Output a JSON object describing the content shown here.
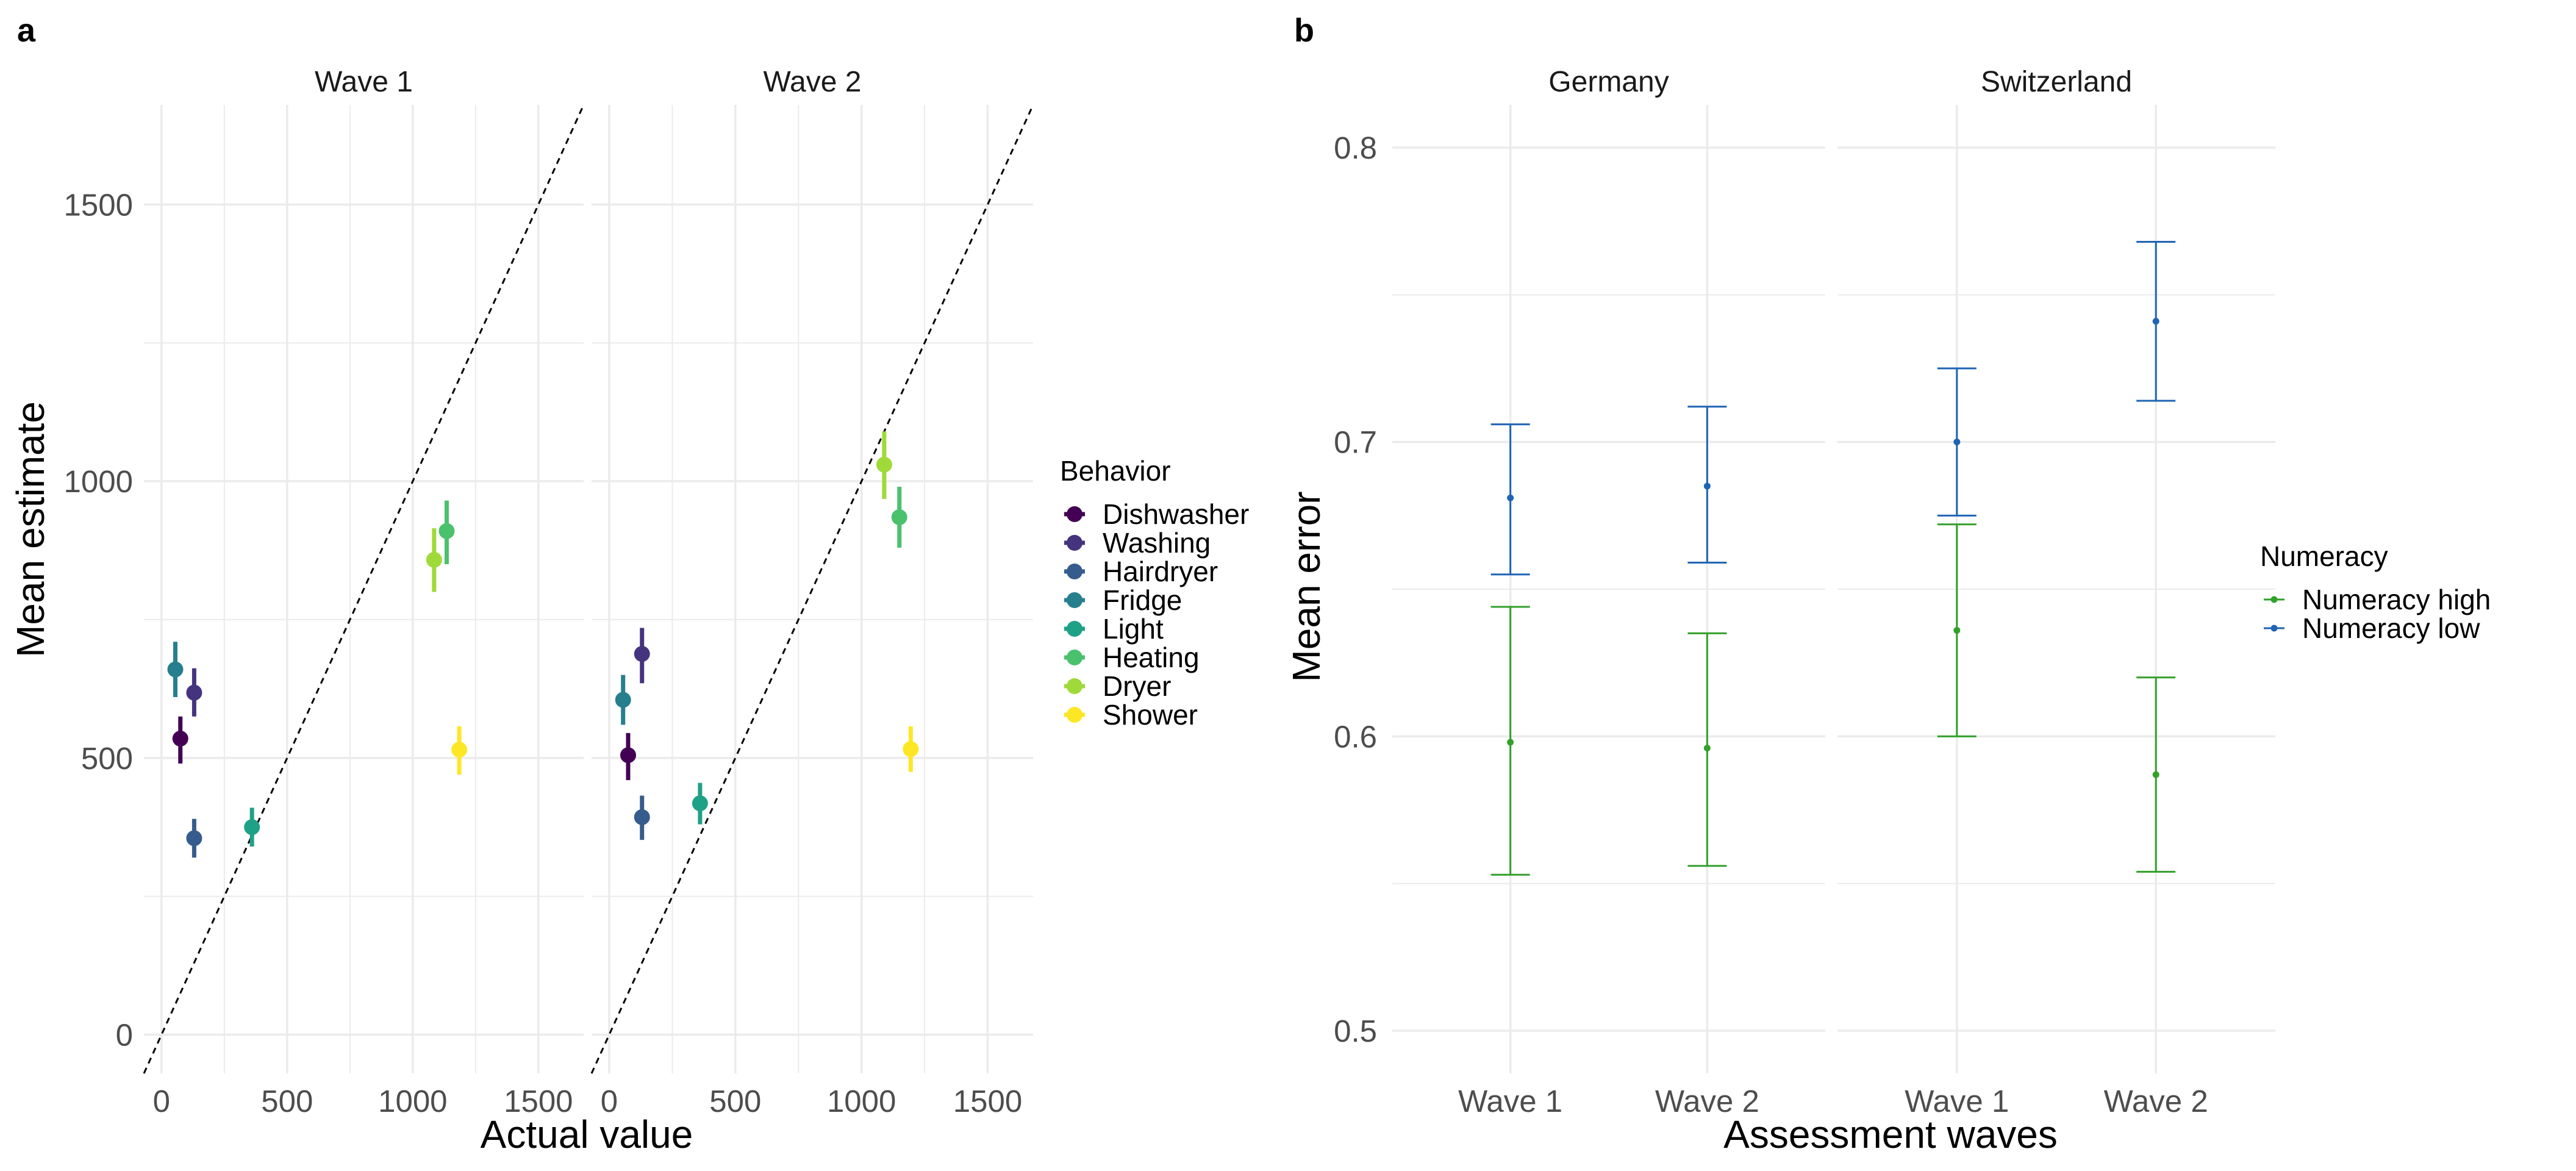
{
  "panel_a": {
    "tag": "a",
    "ylabel": "Mean estimate",
    "xlabel": "Actual value",
    "legend_title": "Behavior"
  },
  "panel_b": {
    "tag": "b",
    "ylabel": "Mean error",
    "xlabel": "Assessment waves",
    "legend_title": "Numeracy"
  },
  "chart_data": [
    {
      "type": "scatter",
      "panel": "a",
      "xlabel": "Actual value",
      "ylabel": "Mean estimate",
      "xlim": [
        -70,
        1680
      ],
      "ylim": [
        -70,
        1680
      ],
      "xticks": [
        0,
        500,
        1000,
        1500
      ],
      "yticks": [
        0,
        500,
        1000,
        1500
      ],
      "grid": true,
      "reference_line": "y = x (dashed)",
      "legend_title": "Behavior",
      "legend_position": "right",
      "categories": [
        "Dishwasher",
        "Washing",
        "Hairdryer",
        "Fridge",
        "Light",
        "Heating",
        "Dryer",
        "Shower"
      ],
      "colors": {
        "Dishwasher": "#440154",
        "Washing": "#46337e",
        "Hairdryer": "#365c8d",
        "Fridge": "#277f8e",
        "Light": "#1fa187",
        "Heating": "#4ac16d",
        "Dryer": "#9fda3a",
        "Shower": "#fde725"
      },
      "facets": [
        {
          "label": "Wave 1",
          "points": [
            {
              "behavior": "Dishwasher",
              "x": 75,
              "y": 535,
              "low": 490,
              "high": 575
            },
            {
              "behavior": "Washing",
              "x": 130,
              "y": 618,
              "low": 575,
              "high": 662
            },
            {
              "behavior": "Hairdryer",
              "x": 130,
              "y": 355,
              "low": 320,
              "high": 390
            },
            {
              "behavior": "Fridge",
              "x": 55,
              "y": 660,
              "low": 610,
              "high": 710
            },
            {
              "behavior": "Light",
              "x": 360,
              "y": 375,
              "low": 340,
              "high": 410
            },
            {
              "behavior": "Heating",
              "x": 1135,
              "y": 910,
              "low": 850,
              "high": 965
            },
            {
              "behavior": "Dryer",
              "x": 1085,
              "y": 858,
              "low": 800,
              "high": 915
            },
            {
              "behavior": "Shower",
              "x": 1185,
              "y": 515,
              "low": 470,
              "high": 557
            }
          ]
        },
        {
          "label": "Wave 2",
          "points": [
            {
              "behavior": "Dishwasher",
              "x": 75,
              "y": 505,
              "low": 460,
              "high": 545
            },
            {
              "behavior": "Washing",
              "x": 130,
              "y": 688,
              "low": 635,
              "high": 735
            },
            {
              "behavior": "Hairdryer",
              "x": 130,
              "y": 393,
              "low": 352,
              "high": 432
            },
            {
              "behavior": "Fridge",
              "x": 55,
              "y": 605,
              "low": 560,
              "high": 650
            },
            {
              "behavior": "Light",
              "x": 360,
              "y": 418,
              "low": 380,
              "high": 455
            },
            {
              "behavior": "Heating",
              "x": 1150,
              "y": 935,
              "low": 880,
              "high": 990
            },
            {
              "behavior": "Dryer",
              "x": 1090,
              "y": 1030,
              "low": 968,
              "high": 1090
            },
            {
              "behavior": "Shower",
              "x": 1195,
              "y": 516,
              "low": 475,
              "high": 557
            }
          ]
        }
      ]
    },
    {
      "type": "scatter",
      "panel": "b",
      "xlabel": "Assessment waves",
      "ylabel": "Mean error",
      "ylim": [
        0.4855,
        0.8145
      ],
      "yticks": [
        0.5,
        0.6,
        0.7,
        0.8
      ],
      "ytick_labels": [
        "0.5",
        "0.6",
        "0.7",
        "0.8"
      ],
      "categories": [
        "Wave 1",
        "Wave 2"
      ],
      "grid": true,
      "legend_title": "Numeracy",
      "legend_position": "right",
      "series": [
        {
          "name": "Numeracy high",
          "color": "#33a02c"
        },
        {
          "name": "Numeracy low",
          "color": "#1f64b4"
        }
      ],
      "facets": [
        {
          "label": "Germany",
          "data": [
            {
              "series": "Numeracy high",
              "x": "Wave 1",
              "y": 0.598,
              "low": 0.553,
              "high": 0.644
            },
            {
              "series": "Numeracy high",
              "x": "Wave 2",
              "y": 0.596,
              "low": 0.556,
              "high": 0.635
            },
            {
              "series": "Numeracy low",
              "x": "Wave 1",
              "y": 0.681,
              "low": 0.655,
              "high": 0.706
            },
            {
              "series": "Numeracy low",
              "x": "Wave 2",
              "y": 0.685,
              "low": 0.659,
              "high": 0.712
            }
          ]
        },
        {
          "label": "Switzerland",
          "data": [
            {
              "series": "Numeracy high",
              "x": "Wave 1",
              "y": 0.636,
              "low": 0.6,
              "high": 0.672
            },
            {
              "series": "Numeracy high",
              "x": "Wave 2",
              "y": 0.587,
              "low": 0.554,
              "high": 0.62
            },
            {
              "series": "Numeracy low",
              "x": "Wave 1",
              "y": 0.7,
              "low": 0.675,
              "high": 0.725
            },
            {
              "series": "Numeracy low",
              "x": "Wave 2",
              "y": 0.741,
              "low": 0.714,
              "high": 0.768
            }
          ]
        }
      ]
    }
  ]
}
